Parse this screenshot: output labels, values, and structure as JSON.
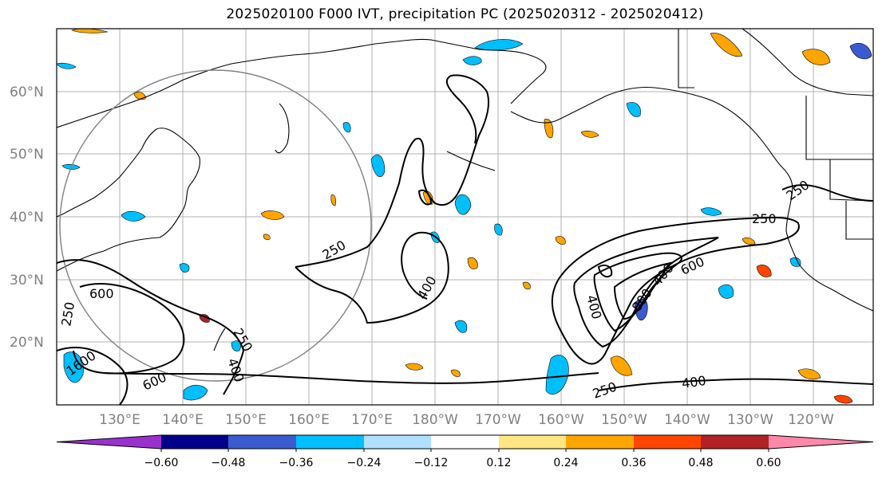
{
  "title": "2025020100 F000 IVT, precipitation PC (2025020312 - 2025020412)",
  "map": {
    "lon_range_deg_east": [
      120,
      249
    ],
    "lat_range_deg_north": [
      10,
      70
    ],
    "latitude_labels": [
      "20°N",
      "30°N",
      "40°N",
      "50°N",
      "60°N"
    ],
    "longitude_labels": [
      "130°E",
      "140°E",
      "150°E",
      "160°E",
      "170°E",
      "180°W",
      "170°W",
      "160°W",
      "150°W",
      "140°W",
      "130°W",
      "120°W"
    ],
    "gridlines": true,
    "ivt_contour_labels": [
      "600",
      "250",
      "1600",
      "250",
      "400",
      "600",
      "250",
      "400",
      "250",
      "400",
      "250",
      "250",
      "400",
      "600",
      "400",
      "800"
    ],
    "circle_color": "#808080",
    "coastline_color": "#000000",
    "contour_color": "#000000"
  },
  "colorbar": {
    "extend": "both",
    "tick_labels": [
      "−0.60",
      "−0.48",
      "−0.36",
      "−0.24",
      "−0.12",
      "0.12",
      "0.24",
      "0.36",
      "0.48",
      "0.60"
    ],
    "colors": [
      "#9932cc",
      "#00008b",
      "#3a5bd0",
      "#00bfff",
      "#b0e0ff",
      "#ffffff",
      "#ffe680",
      "#ffa500",
      "#ff4500",
      "#b22222",
      "#ff88aa"
    ]
  },
  "legend_colors": {
    "neg_light": "#b0e0ff",
    "neg_mid": "#00bfff",
    "neg_dark": "#3a5bd0",
    "pos_light": "#ffe680",
    "pos_mid": "#ffa500",
    "pos_dark": "#ff4500"
  }
}
